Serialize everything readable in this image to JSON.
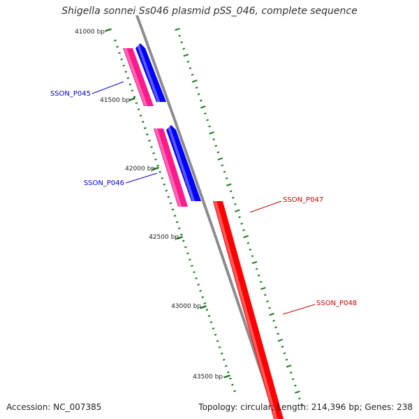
{
  "title": "Shigella sonnei Ss046 plasmid pSS_046, complete sequence",
  "accession": "Accession: NC_007385",
  "summary": "Topology: circular; Length: 214,396 bp; Genes: 238",
  "colors": {
    "backbone": "#8c8c8c",
    "forward_cds": "#0000ff",
    "forward_gene": "#ff1a8c",
    "reverse_gene": "#ff0000",
    "ticks": "#1a7a1a",
    "forward_label": "#0000cc",
    "reverse_label": "#cc0000"
  },
  "ticks": [
    {
      "label": "41000 bp"
    },
    {
      "label": "41500 bp"
    },
    {
      "label": "42000 bp"
    },
    {
      "label": "42500 bp"
    },
    {
      "label": "43000 bp"
    },
    {
      "label": "43500 bp"
    }
  ],
  "genes": [
    {
      "label": "SSON_P045",
      "strand": "forward"
    },
    {
      "label": "SSON_P046",
      "strand": "forward"
    },
    {
      "label": "SSON_P047",
      "strand": "reverse"
    },
    {
      "label": "SSON_P048",
      "strand": "reverse"
    }
  ]
}
